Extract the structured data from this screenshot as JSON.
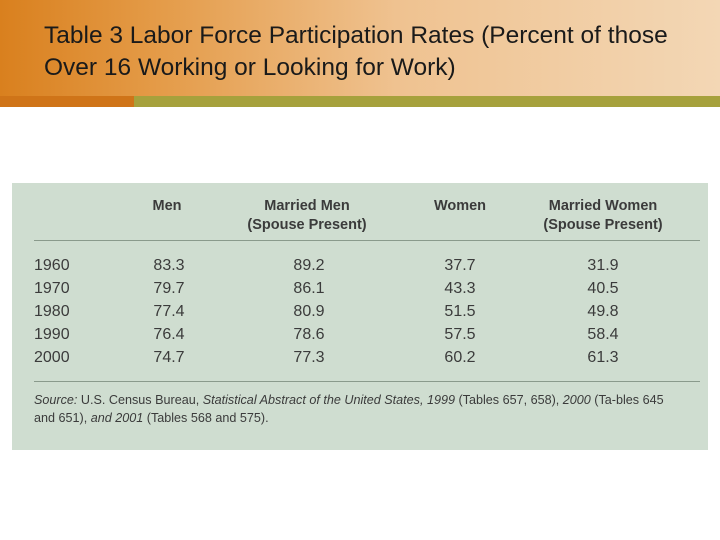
{
  "slide": {
    "title": "Table 3 Labor Force Participation Rates (Percent of those Over 16 Working or Looking for Work)"
  },
  "table": {
    "headers": [
      {
        "line1": "",
        "line2": "Men"
      },
      {
        "line1": "Married Men",
        "line2": "(Spouse Present)"
      },
      {
        "line1": "",
        "line2": "Women"
      },
      {
        "line1": "Married Women",
        "line2": "(Spouse Present)"
      }
    ],
    "rows": [
      {
        "year": "1960",
        "values": [
          "83.3",
          "89.2",
          "37.7",
          "31.9"
        ]
      },
      {
        "year": "1970",
        "values": [
          "79.7",
          "86.1",
          "43.3",
          "40.5"
        ]
      },
      {
        "year": "1980",
        "values": [
          "77.4",
          "80.9",
          "51.5",
          "49.8"
        ]
      },
      {
        "year": "1990",
        "values": [
          "76.4",
          "78.6",
          "57.5",
          "58.4"
        ]
      },
      {
        "year": "2000",
        "values": [
          "74.7",
          "77.3",
          "60.2",
          "61.3"
        ]
      }
    ],
    "source": {
      "label": "Source:",
      "t1": " U.S. Census Bureau, ",
      "i1": "Statistical Abstract of the United States, 1999",
      "t2": " (Tables 657, 658), ",
      "i2": "2000",
      "t3": " (Ta-bles 645 and 651), ",
      "i3": "and 2001",
      "t4": " (Tables 568 and 575)."
    }
  },
  "colors": {
    "header_orange": "#d9801e",
    "header_light": "#f3d7b5",
    "accent_olive": "#a6a13c",
    "panel_bg": "#cfddd0"
  }
}
